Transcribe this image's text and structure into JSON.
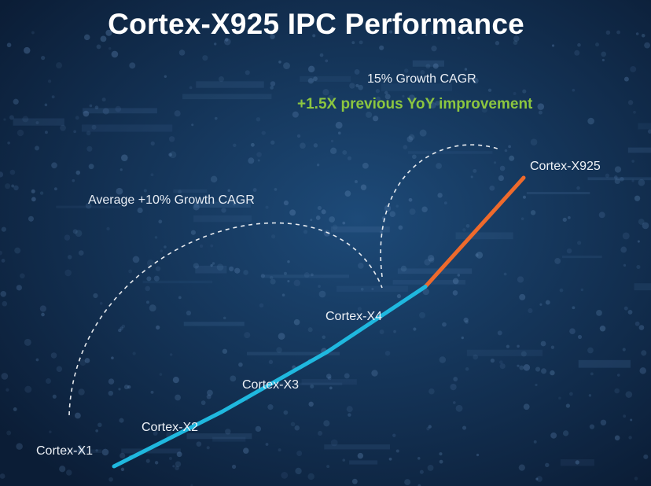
{
  "slide": {
    "title": "Cortex-X925 IPC Performance"
  },
  "colors": {
    "background": "#0f2746",
    "trend_line": "#1fb8df",
    "highlight_line": "#ee6a2c",
    "green_text": "#8cc63f",
    "dashed_arc": "#ffffff"
  },
  "chart_data": {
    "type": "line",
    "title": "Cortex-X925 IPC Performance",
    "categories": [
      "Cortex-X1",
      "Cortex-X2",
      "Cortex-X3",
      "Cortex-X4",
      "Cortex-X925"
    ],
    "values": [
      1.0,
      1.1,
      1.21,
      1.33,
      1.53
    ],
    "segments": [
      {
        "from": "Cortex-X1",
        "to": "Cortex-X4",
        "color": "#1fb8df"
      },
      {
        "from": "Cortex-X4",
        "to": "Cortex-X925",
        "color": "#ee6a2c"
      }
    ],
    "xlabel": "",
    "ylabel": "",
    "ylim": [
      1.0,
      1.53
    ],
    "grid": false,
    "annotations": [
      {
        "text": "Average +10% Growth CAGR",
        "span": [
          "Cortex-X1",
          "Cortex-X4"
        ]
      },
      {
        "text": "15% Growth CAGR",
        "span": [
          "Cortex-X4",
          "Cortex-X925"
        ]
      },
      {
        "text": "+1.5X previous YoY improvement",
        "span": [
          "Cortex-X4",
          "Cortex-X925"
        ]
      }
    ]
  }
}
